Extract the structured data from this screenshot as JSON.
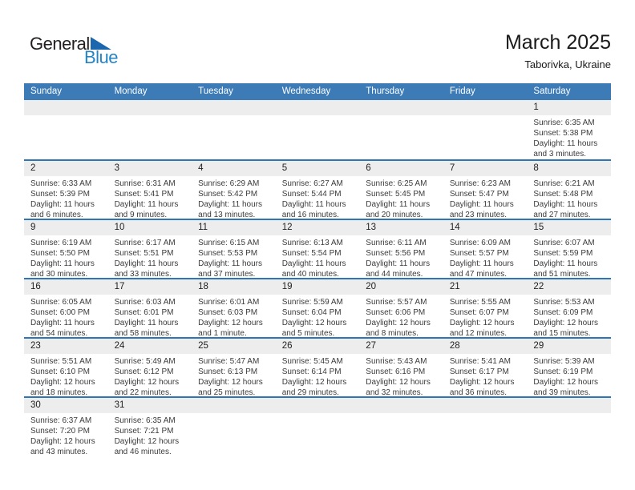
{
  "logo": {
    "part1": "General",
    "part2": "Blue"
  },
  "header": {
    "title": "March 2025",
    "subtitle": "Taborivka, Ukraine"
  },
  "weekdays": [
    "Sunday",
    "Monday",
    "Tuesday",
    "Wednesday",
    "Thursday",
    "Friday",
    "Saturday"
  ],
  "colors": {
    "header_blue": "#3d7bb7",
    "line_blue": "#2e75b5",
    "strip_gray": "#ededed",
    "logo_blue": "#2484c6",
    "logo_triangle_blue": "#1c66ad"
  },
  "weeks": [
    [
      null,
      null,
      null,
      null,
      null,
      null,
      {
        "day": "1",
        "sunrise": "Sunrise: 6:35 AM",
        "sunset": "Sunset: 5:38 PM",
        "daylight1": "Daylight: 11 hours",
        "daylight2": "and 3 minutes."
      }
    ],
    [
      {
        "day": "2",
        "sunrise": "Sunrise: 6:33 AM",
        "sunset": "Sunset: 5:39 PM",
        "daylight1": "Daylight: 11 hours",
        "daylight2": "and 6 minutes."
      },
      {
        "day": "3",
        "sunrise": "Sunrise: 6:31 AM",
        "sunset": "Sunset: 5:41 PM",
        "daylight1": "Daylight: 11 hours",
        "daylight2": "and 9 minutes."
      },
      {
        "day": "4",
        "sunrise": "Sunrise: 6:29 AM",
        "sunset": "Sunset: 5:42 PM",
        "daylight1": "Daylight: 11 hours",
        "daylight2": "and 13 minutes."
      },
      {
        "day": "5",
        "sunrise": "Sunrise: 6:27 AM",
        "sunset": "Sunset: 5:44 PM",
        "daylight1": "Daylight: 11 hours",
        "daylight2": "and 16 minutes."
      },
      {
        "day": "6",
        "sunrise": "Sunrise: 6:25 AM",
        "sunset": "Sunset: 5:45 PM",
        "daylight1": "Daylight: 11 hours",
        "daylight2": "and 20 minutes."
      },
      {
        "day": "7",
        "sunrise": "Sunrise: 6:23 AM",
        "sunset": "Sunset: 5:47 PM",
        "daylight1": "Daylight: 11 hours",
        "daylight2": "and 23 minutes."
      },
      {
        "day": "8",
        "sunrise": "Sunrise: 6:21 AM",
        "sunset": "Sunset: 5:48 PM",
        "daylight1": "Daylight: 11 hours",
        "daylight2": "and 27 minutes."
      }
    ],
    [
      {
        "day": "9",
        "sunrise": "Sunrise: 6:19 AM",
        "sunset": "Sunset: 5:50 PM",
        "daylight1": "Daylight: 11 hours",
        "daylight2": "and 30 minutes."
      },
      {
        "day": "10",
        "sunrise": "Sunrise: 6:17 AM",
        "sunset": "Sunset: 5:51 PM",
        "daylight1": "Daylight: 11 hours",
        "daylight2": "and 33 minutes."
      },
      {
        "day": "11",
        "sunrise": "Sunrise: 6:15 AM",
        "sunset": "Sunset: 5:53 PM",
        "daylight1": "Daylight: 11 hours",
        "daylight2": "and 37 minutes."
      },
      {
        "day": "12",
        "sunrise": "Sunrise: 6:13 AM",
        "sunset": "Sunset: 5:54 PM",
        "daylight1": "Daylight: 11 hours",
        "daylight2": "and 40 minutes."
      },
      {
        "day": "13",
        "sunrise": "Sunrise: 6:11 AM",
        "sunset": "Sunset: 5:56 PM",
        "daylight1": "Daylight: 11 hours",
        "daylight2": "and 44 minutes."
      },
      {
        "day": "14",
        "sunrise": "Sunrise: 6:09 AM",
        "sunset": "Sunset: 5:57 PM",
        "daylight1": "Daylight: 11 hours",
        "daylight2": "and 47 minutes."
      },
      {
        "day": "15",
        "sunrise": "Sunrise: 6:07 AM",
        "sunset": "Sunset: 5:59 PM",
        "daylight1": "Daylight: 11 hours",
        "daylight2": "and 51 minutes."
      }
    ],
    [
      {
        "day": "16",
        "sunrise": "Sunrise: 6:05 AM",
        "sunset": "Sunset: 6:00 PM",
        "daylight1": "Daylight: 11 hours",
        "daylight2": "and 54 minutes."
      },
      {
        "day": "17",
        "sunrise": "Sunrise: 6:03 AM",
        "sunset": "Sunset: 6:01 PM",
        "daylight1": "Daylight: 11 hours",
        "daylight2": "and 58 minutes."
      },
      {
        "day": "18",
        "sunrise": "Sunrise: 6:01 AM",
        "sunset": "Sunset: 6:03 PM",
        "daylight1": "Daylight: 12 hours",
        "daylight2": "and 1 minute."
      },
      {
        "day": "19",
        "sunrise": "Sunrise: 5:59 AM",
        "sunset": "Sunset: 6:04 PM",
        "daylight1": "Daylight: 12 hours",
        "daylight2": "and 5 minutes."
      },
      {
        "day": "20",
        "sunrise": "Sunrise: 5:57 AM",
        "sunset": "Sunset: 6:06 PM",
        "daylight1": "Daylight: 12 hours",
        "daylight2": "and 8 minutes."
      },
      {
        "day": "21",
        "sunrise": "Sunrise: 5:55 AM",
        "sunset": "Sunset: 6:07 PM",
        "daylight1": "Daylight: 12 hours",
        "daylight2": "and 12 minutes."
      },
      {
        "day": "22",
        "sunrise": "Sunrise: 5:53 AM",
        "sunset": "Sunset: 6:09 PM",
        "daylight1": "Daylight: 12 hours",
        "daylight2": "and 15 minutes."
      }
    ],
    [
      {
        "day": "23",
        "sunrise": "Sunrise: 5:51 AM",
        "sunset": "Sunset: 6:10 PM",
        "daylight1": "Daylight: 12 hours",
        "daylight2": "and 18 minutes."
      },
      {
        "day": "24",
        "sunrise": "Sunrise: 5:49 AM",
        "sunset": "Sunset: 6:12 PM",
        "daylight1": "Daylight: 12 hours",
        "daylight2": "and 22 minutes."
      },
      {
        "day": "25",
        "sunrise": "Sunrise: 5:47 AM",
        "sunset": "Sunset: 6:13 PM",
        "daylight1": "Daylight: 12 hours",
        "daylight2": "and 25 minutes."
      },
      {
        "day": "26",
        "sunrise": "Sunrise: 5:45 AM",
        "sunset": "Sunset: 6:14 PM",
        "daylight1": "Daylight: 12 hours",
        "daylight2": "and 29 minutes."
      },
      {
        "day": "27",
        "sunrise": "Sunrise: 5:43 AM",
        "sunset": "Sunset: 6:16 PM",
        "daylight1": "Daylight: 12 hours",
        "daylight2": "and 32 minutes."
      },
      {
        "day": "28",
        "sunrise": "Sunrise: 5:41 AM",
        "sunset": "Sunset: 6:17 PM",
        "daylight1": "Daylight: 12 hours",
        "daylight2": "and 36 minutes."
      },
      {
        "day": "29",
        "sunrise": "Sunrise: 5:39 AM",
        "sunset": "Sunset: 6:19 PM",
        "daylight1": "Daylight: 12 hours",
        "daylight2": "and 39 minutes."
      }
    ],
    [
      {
        "day": "30",
        "sunrise": "Sunrise: 6:37 AM",
        "sunset": "Sunset: 7:20 PM",
        "daylight1": "Daylight: 12 hours",
        "daylight2": "and 43 minutes."
      },
      {
        "day": "31",
        "sunrise": "Sunrise: 6:35 AM",
        "sunset": "Sunset: 7:21 PM",
        "daylight1": "Daylight: 12 hours",
        "daylight2": "and 46 minutes."
      },
      null,
      null,
      null,
      null,
      null
    ]
  ]
}
